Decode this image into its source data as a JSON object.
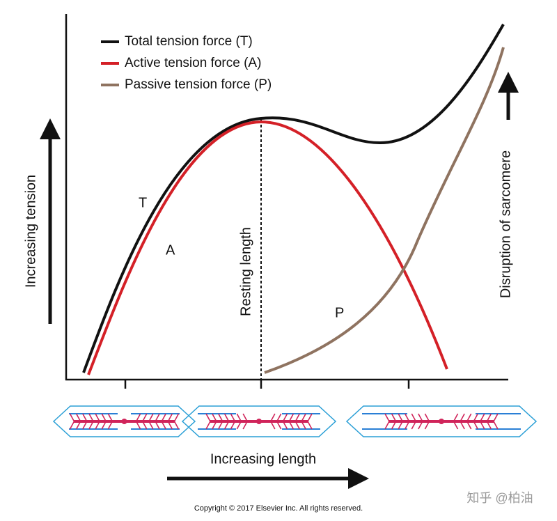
{
  "legend": [
    "Total tension force (T)",
    "Active tension force (A)",
    "Passive tension force (P)"
  ],
  "curve_labels": [
    "T",
    "A",
    "P"
  ],
  "y_axis_label": "Increasing tension",
  "resting_length_label": "Resting length",
  "disruption_label": "Disruption of sarcomere",
  "x_axis_label": "Increasing length",
  "copyright": "Copyright © 2017 Elsevier Inc. All rights reserved.",
  "watermark": "知乎 @柏油"
}
